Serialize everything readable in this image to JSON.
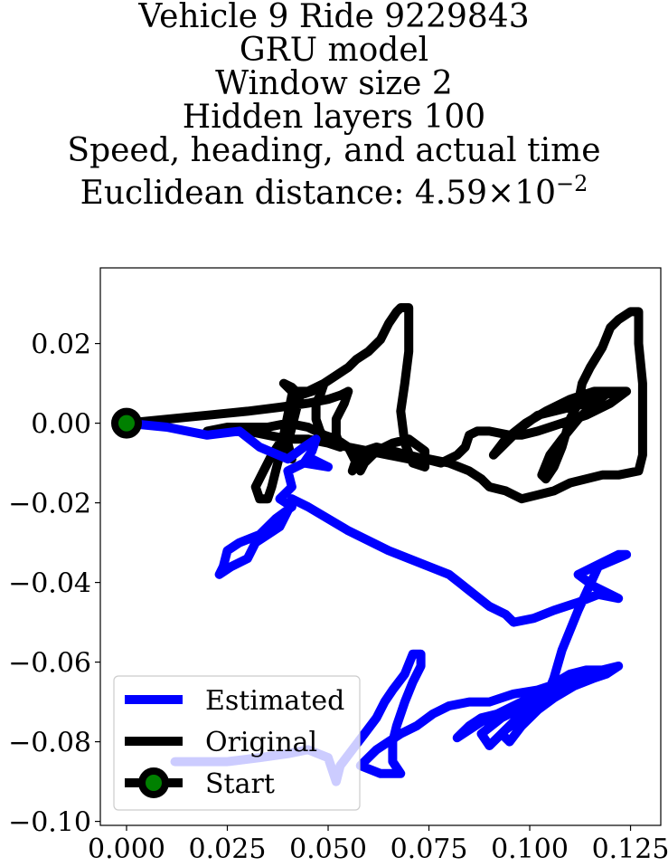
{
  "title_lines": [
    "Vehicle 9 Ride 9229843",
    "GRU model",
    "Window size 2",
    "Hidden layers 100",
    "Speed, heading, and actual time"
  ],
  "distance": {
    "label": "Euclidean distance: 4.59",
    "times": "×",
    "base": "10",
    "exponent": "−2"
  },
  "chart_data": {
    "type": "line",
    "xlim": [
      -0.0065,
      0.1325
    ],
    "ylim": [
      -0.101,
      0.039
    ],
    "xticks": [
      0.0,
      0.025,
      0.05,
      0.075,
      0.1,
      0.125
    ],
    "xtick_labels": [
      "0.000",
      "0.025",
      "0.050",
      "0.075",
      "0.100",
      "0.125"
    ],
    "yticks": [
      0.02,
      0.0,
      -0.02,
      -0.04,
      -0.06,
      -0.08,
      -0.1
    ],
    "ytick_labels": [
      "0.02",
      "0.00",
      "−0.02",
      "−0.04",
      "−0.06",
      "−0.08",
      "−0.10"
    ],
    "grid": false,
    "legend_position": "lower-left",
    "series": [
      {
        "name": "Estimated",
        "color": "#0000ff",
        "points": [
          [
            0.0,
            0.0
          ],
          [
            0.01,
            -0.001
          ],
          [
            0.02,
            -0.003
          ],
          [
            0.028,
            -0.002
          ],
          [
            0.033,
            -0.006
          ],
          [
            0.04,
            -0.009
          ],
          [
            0.044,
            -0.006
          ],
          [
            0.047,
            -0.004
          ],
          [
            0.046,
            -0.007
          ],
          [
            0.044,
            -0.01
          ],
          [
            0.05,
            -0.011
          ],
          [
            0.046,
            -0.009
          ],
          [
            0.04,
            -0.012
          ],
          [
            0.041,
            -0.016
          ],
          [
            0.038,
            -0.019
          ],
          [
            0.041,
            -0.021
          ],
          [
            0.037,
            -0.024
          ],
          [
            0.033,
            -0.028
          ],
          [
            0.028,
            -0.03
          ],
          [
            0.025,
            -0.032
          ],
          [
            0.024,
            -0.036
          ],
          [
            0.023,
            -0.038
          ],
          [
            0.026,
            -0.036
          ],
          [
            0.03,
            -0.034
          ],
          [
            0.032,
            -0.03
          ],
          [
            0.035,
            -0.028
          ],
          [
            0.038,
            -0.026
          ],
          [
            0.04,
            -0.022
          ],
          [
            0.041,
            -0.019
          ],
          [
            0.045,
            -0.021
          ],
          [
            0.055,
            -0.027
          ],
          [
            0.065,
            -0.032
          ],
          [
            0.075,
            -0.036
          ],
          [
            0.08,
            -0.038
          ],
          [
            0.085,
            -0.042
          ],
          [
            0.09,
            -0.046
          ],
          [
            0.094,
            -0.048
          ],
          [
            0.096,
            -0.05
          ],
          [
            0.101,
            -0.049
          ],
          [
            0.106,
            -0.047
          ],
          [
            0.112,
            -0.045
          ],
          [
            0.117,
            -0.043
          ],
          [
            0.122,
            -0.044
          ],
          [
            0.116,
            -0.041
          ],
          [
            0.112,
            -0.038
          ],
          [
            0.118,
            -0.035
          ],
          [
            0.122,
            -0.033
          ],
          [
            0.124,
            -0.033
          ],
          [
            0.117,
            -0.036
          ],
          [
            0.112,
            -0.047
          ],
          [
            0.108,
            -0.057
          ],
          [
            0.106,
            -0.064
          ],
          [
            0.104,
            -0.069
          ],
          [
            0.1,
            -0.072
          ],
          [
            0.097,
            -0.072
          ],
          [
            0.092,
            -0.073
          ],
          [
            0.088,
            -0.074
          ],
          [
            0.085,
            -0.076
          ],
          [
            0.082,
            -0.079
          ],
          [
            0.088,
            -0.075
          ],
          [
            0.094,
            -0.072
          ],
          [
            0.1,
            -0.069
          ],
          [
            0.106,
            -0.067
          ],
          [
            0.111,
            -0.066
          ],
          [
            0.116,
            -0.064
          ],
          [
            0.119,
            -0.063
          ],
          [
            0.122,
            -0.061
          ],
          [
            0.118,
            -0.062
          ],
          [
            0.112,
            -0.065
          ],
          [
            0.106,
            -0.068
          ],
          [
            0.102,
            -0.071
          ],
          [
            0.098,
            -0.074
          ],
          [
            0.094,
            -0.077
          ],
          [
            0.09,
            -0.081
          ],
          [
            0.088,
            -0.078
          ],
          [
            0.093,
            -0.074
          ],
          [
            0.099,
            -0.071
          ],
          [
            0.105,
            -0.066
          ],
          [
            0.11,
            -0.063
          ],
          [
            0.114,
            -0.062
          ],
          [
            0.118,
            -0.062
          ],
          [
            0.116,
            -0.064
          ],
          [
            0.111,
            -0.066
          ],
          [
            0.106,
            -0.069
          ],
          [
            0.102,
            -0.072
          ],
          [
            0.098,
            -0.076
          ],
          [
            0.095,
            -0.08
          ],
          [
            0.093,
            -0.078
          ],
          [
            0.097,
            -0.074
          ],
          [
            0.102,
            -0.07
          ],
          [
            0.108,
            -0.067
          ],
          [
            0.113,
            -0.065
          ],
          [
            0.117,
            -0.063
          ],
          [
            0.114,
            -0.063
          ],
          [
            0.108,
            -0.065
          ],
          [
            0.102,
            -0.067
          ],
          [
            0.096,
            -0.068
          ],
          [
            0.09,
            -0.07
          ],
          [
            0.085,
            -0.07
          ],
          [
            0.08,
            -0.071
          ],
          [
            0.076,
            -0.073
          ],
          [
            0.072,
            -0.076
          ],
          [
            0.068,
            -0.078
          ],
          [
            0.065,
            -0.08
          ],
          [
            0.062,
            -0.082
          ],
          [
            0.06,
            -0.084
          ],
          [
            0.058,
            -0.086
          ],
          [
            0.063,
            -0.088
          ],
          [
            0.068,
            -0.088
          ],
          [
            0.066,
            -0.085
          ],
          [
            0.066,
            -0.08
          ],
          [
            0.067,
            -0.076
          ],
          [
            0.069,
            -0.07
          ],
          [
            0.071,
            -0.065
          ],
          [
            0.073,
            -0.061
          ],
          [
            0.073,
            -0.058
          ],
          [
            0.071,
            -0.058
          ],
          [
            0.069,
            -0.063
          ],
          [
            0.066,
            -0.067
          ],
          [
            0.064,
            -0.07
          ],
          [
            0.062,
            -0.074
          ],
          [
            0.059,
            -0.078
          ],
          [
            0.056,
            -0.082
          ],
          [
            0.053,
            -0.086
          ],
          [
            0.052,
            -0.09
          ],
          [
            0.05,
            -0.084
          ],
          [
            0.045,
            -0.082
          ],
          [
            0.04,
            -0.083
          ],
          [
            0.033,
            -0.084
          ],
          [
            0.025,
            -0.085
          ],
          [
            0.018,
            -0.085
          ],
          [
            0.012,
            -0.085
          ]
        ]
      },
      {
        "name": "Original",
        "color": "#000000",
        "points": [
          [
            0.0,
            0.0
          ],
          [
            0.01,
            0.001
          ],
          [
            0.02,
            0.002
          ],
          [
            0.03,
            0.003
          ],
          [
            0.038,
            0.004
          ],
          [
            0.045,
            0.005
          ],
          [
            0.05,
            0.006
          ],
          [
            0.053,
            0.007
          ],
          [
            0.055,
            0.008
          ],
          [
            0.054,
            0.005
          ],
          [
            0.052,
            0.001
          ],
          [
            0.052,
            -0.003
          ],
          [
            0.053,
            -0.006
          ],
          [
            0.05,
            -0.005
          ],
          [
            0.048,
            -0.002
          ],
          [
            0.047,
            0.001
          ],
          [
            0.047,
            0.005
          ],
          [
            0.048,
            0.007
          ],
          [
            0.049,
            0.01
          ],
          [
            0.046,
            0.008
          ],
          [
            0.043,
            0.007
          ],
          [
            0.041,
            0.007
          ],
          [
            0.04,
            0.002
          ],
          [
            0.039,
            -0.003
          ],
          [
            0.038,
            -0.008
          ],
          [
            0.037,
            -0.012
          ],
          [
            0.036,
            -0.016
          ],
          [
            0.035,
            -0.019
          ],
          [
            0.033,
            -0.019
          ],
          [
            0.032,
            -0.016
          ],
          [
            0.034,
            -0.012
          ],
          [
            0.036,
            -0.008
          ],
          [
            0.038,
            -0.005
          ],
          [
            0.04,
            -0.006
          ],
          [
            0.041,
            -0.009
          ],
          [
            0.04,
            -0.005
          ],
          [
            0.041,
            -0.001
          ],
          [
            0.042,
            0.003
          ],
          [
            0.043,
            0.007
          ],
          [
            0.041,
            0.009
          ],
          [
            0.039,
            0.01
          ],
          [
            0.041,
            0.008
          ],
          [
            0.045,
            0.008
          ],
          [
            0.049,
            0.01
          ],
          [
            0.052,
            0.012
          ],
          [
            0.055,
            0.014
          ],
          [
            0.057,
            0.016
          ],
          [
            0.06,
            0.018
          ],
          [
            0.063,
            0.021
          ],
          [
            0.065,
            0.025
          ],
          [
            0.067,
            0.028
          ],
          [
            0.068,
            0.029
          ],
          [
            0.07,
            0.029
          ],
          [
            0.07,
            0.025
          ],
          [
            0.07,
            0.018
          ],
          [
            0.069,
            0.01
          ],
          [
            0.068,
            0.003
          ],
          [
            0.069,
            -0.005
          ],
          [
            0.071,
            -0.01
          ],
          [
            0.074,
            -0.011
          ],
          [
            0.074,
            -0.007
          ],
          [
            0.07,
            -0.004
          ],
          [
            0.066,
            -0.005
          ],
          [
            0.062,
            -0.007
          ],
          [
            0.059,
            -0.01
          ],
          [
            0.058,
            -0.012
          ],
          [
            0.057,
            -0.01
          ],
          [
            0.055,
            -0.006
          ],
          [
            0.052,
            -0.004
          ],
          [
            0.049,
            -0.003
          ],
          [
            0.045,
            -0.001
          ],
          [
            0.04,
            0.0
          ],
          [
            0.035,
            -0.001
          ],
          [
            0.03,
            -0.001
          ],
          [
            0.025,
            -0.001
          ],
          [
            0.02,
            -0.002
          ],
          [
            0.025,
            -0.001
          ],
          [
            0.03,
            -0.002
          ],
          [
            0.035,
            -0.003
          ],
          [
            0.04,
            -0.004
          ],
          [
            0.045,
            -0.004
          ],
          [
            0.05,
            -0.005
          ],
          [
            0.055,
            -0.006
          ],
          [
            0.06,
            -0.007
          ],
          [
            0.065,
            -0.008
          ],
          [
            0.07,
            -0.009
          ],
          [
            0.075,
            -0.009
          ],
          [
            0.08,
            -0.01
          ],
          [
            0.085,
            -0.012
          ],
          [
            0.088,
            -0.014
          ],
          [
            0.09,
            -0.016
          ],
          [
            0.094,
            -0.017
          ],
          [
            0.098,
            -0.019
          ],
          [
            0.102,
            -0.018
          ],
          [
            0.106,
            -0.017
          ],
          [
            0.11,
            -0.015
          ],
          [
            0.114,
            -0.014
          ],
          [
            0.118,
            -0.013
          ],
          [
            0.122,
            -0.013
          ],
          [
            0.127,
            -0.012
          ],
          [
            0.128,
            -0.008
          ],
          [
            0.128,
            0.0
          ],
          [
            0.128,
            0.01
          ],
          [
            0.127,
            0.02
          ],
          [
            0.127,
            0.028
          ],
          [
            0.125,
            0.028
          ],
          [
            0.122,
            0.026
          ],
          [
            0.12,
            0.024
          ],
          [
            0.118,
            0.019
          ],
          [
            0.115,
            0.014
          ],
          [
            0.113,
            0.01
          ],
          [
            0.112,
            0.005
          ],
          [
            0.11,
            0.001
          ],
          [
            0.108,
            -0.006
          ],
          [
            0.106,
            -0.011
          ],
          [
            0.104,
            -0.014
          ],
          [
            0.103,
            -0.013
          ],
          [
            0.105,
            -0.008
          ],
          [
            0.108,
            -0.004
          ],
          [
            0.112,
            0.001
          ],
          [
            0.116,
            0.005
          ],
          [
            0.12,
            0.008
          ],
          [
            0.122,
            0.008
          ],
          [
            0.118,
            0.007
          ],
          [
            0.114,
            0.005
          ],
          [
            0.11,
            0.004
          ],
          [
            0.106,
            0.003
          ],
          [
            0.102,
            0.002
          ],
          [
            0.098,
            -0.001
          ],
          [
            0.094,
            -0.005
          ],
          [
            0.091,
            -0.008
          ],
          [
            0.094,
            -0.004
          ],
          [
            0.099,
            0.0
          ],
          [
            0.104,
            0.003
          ],
          [
            0.11,
            0.006
          ],
          [
            0.116,
            0.008
          ],
          [
            0.122,
            0.008
          ],
          [
            0.124,
            0.008
          ],
          [
            0.12,
            0.005
          ],
          [
            0.114,
            0.002
          ],
          [
            0.108,
            0.0
          ],
          [
            0.102,
            -0.002
          ],
          [
            0.098,
            -0.003
          ],
          [
            0.095,
            -0.003
          ],
          [
            0.09,
            -0.002
          ],
          [
            0.087,
            -0.002
          ],
          [
            0.085,
            -0.003
          ],
          [
            0.084,
            -0.006
          ],
          [
            0.082,
            -0.008
          ],
          [
            0.078,
            -0.01
          ],
          [
            0.074,
            -0.009
          ],
          [
            0.07,
            -0.008
          ],
          [
            0.066,
            -0.007
          ],
          [
            0.062,
            -0.006
          ],
          [
            0.059,
            -0.007
          ],
          [
            0.057,
            -0.009
          ],
          [
            0.056,
            -0.012
          ]
        ]
      }
    ],
    "start_point": [
      0.0,
      0.0
    ],
    "start_marker_color": "#008000",
    "legend": [
      {
        "label": "Estimated",
        "color": "#0000ff",
        "marker": false
      },
      {
        "label": "Original",
        "color": "#000000",
        "marker": false
      },
      {
        "label": "Start",
        "color": "#000000",
        "marker": true,
        "marker_color": "#008000"
      }
    ]
  }
}
